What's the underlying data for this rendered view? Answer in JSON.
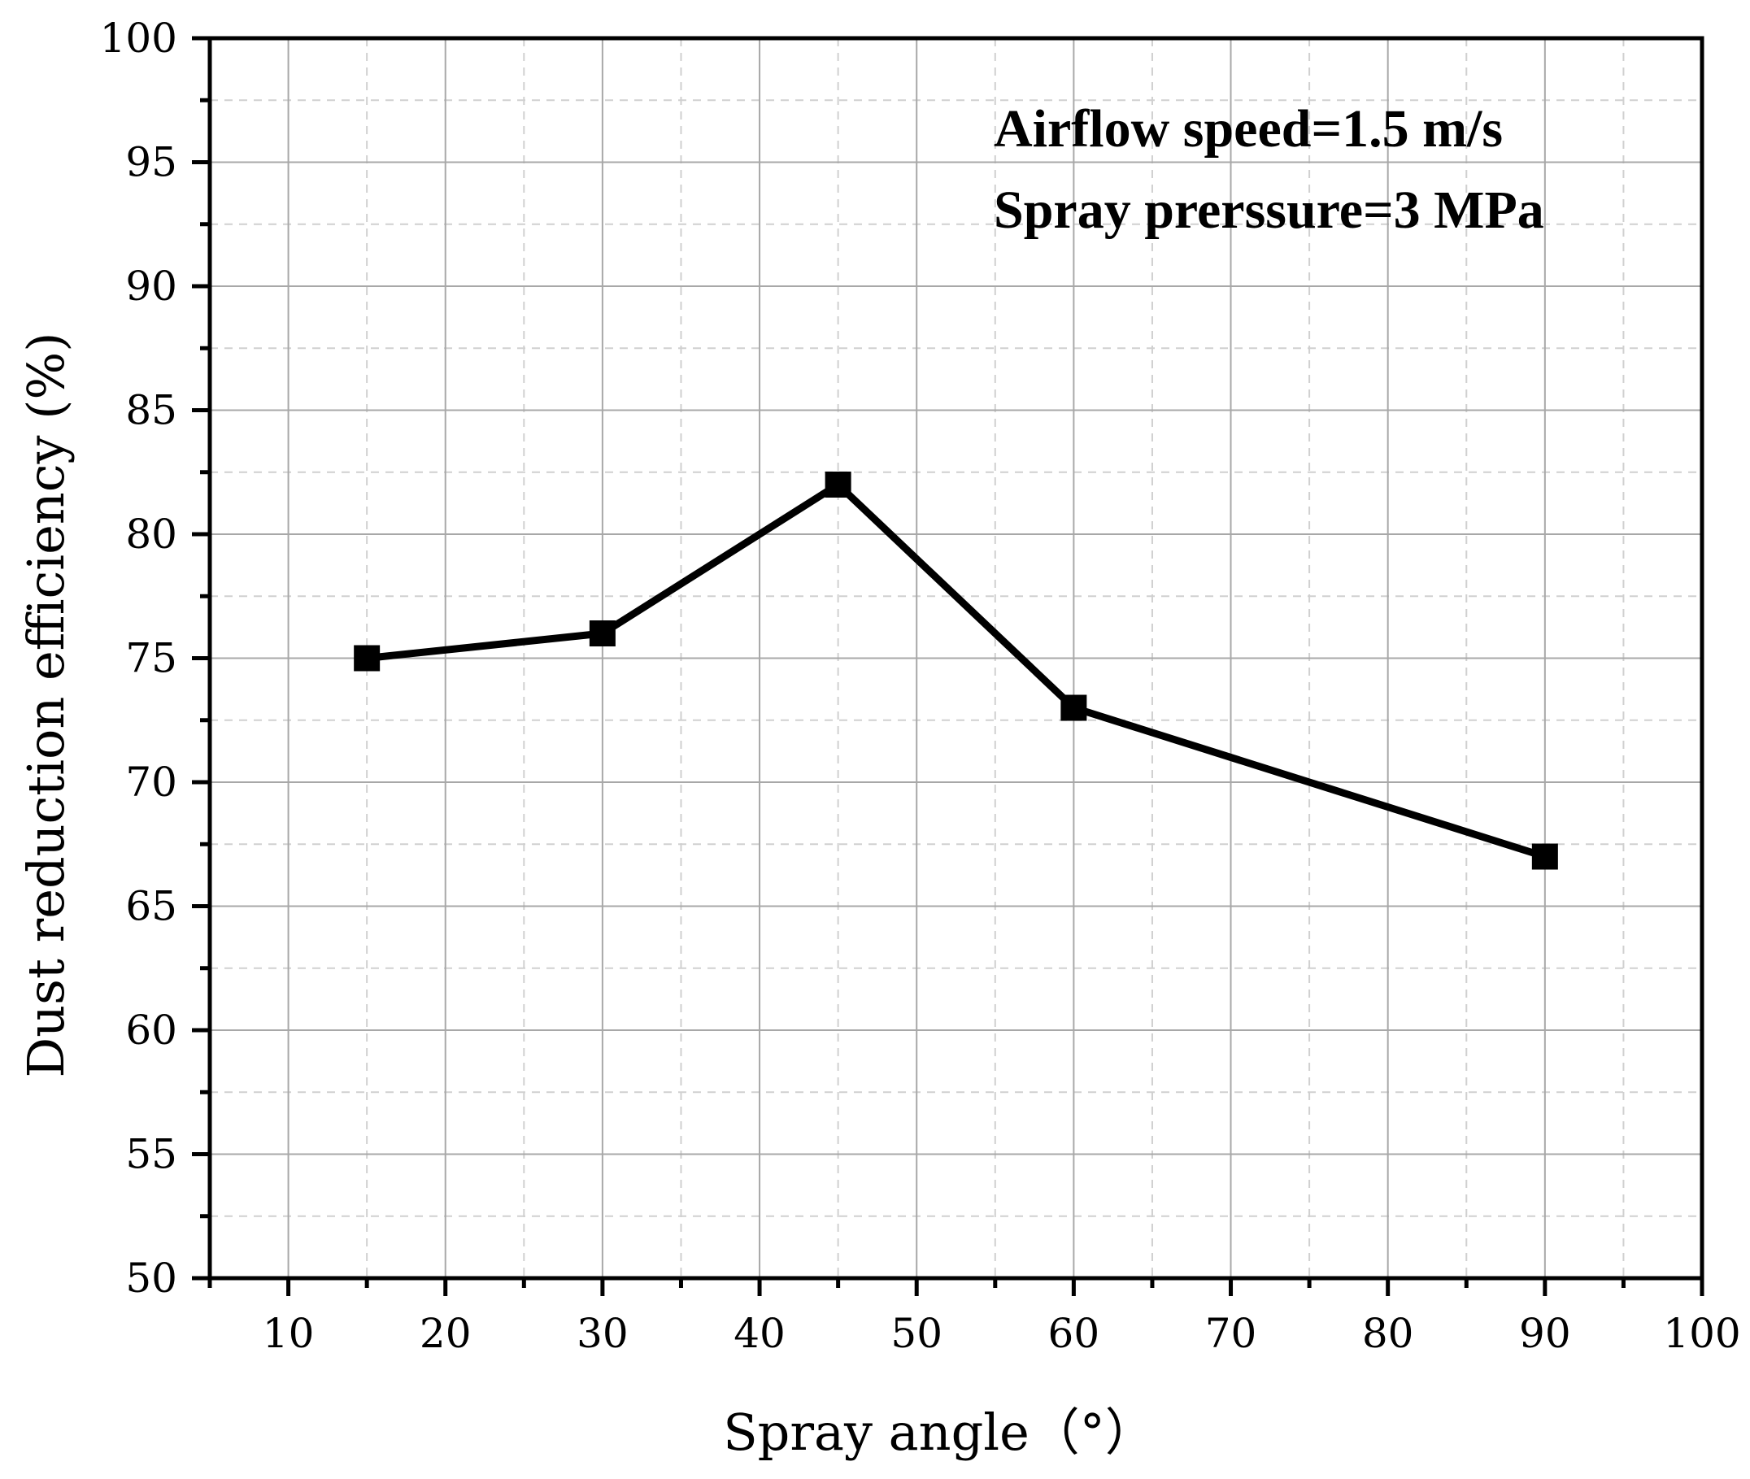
{
  "chart_data": {
    "type": "line",
    "title": "",
    "xlabel": "Spray angle（°）",
    "ylabel": "Dust reduction efficiency (%)",
    "xlim": [
      5,
      100
    ],
    "ylim": [
      50,
      100
    ],
    "xticks": [
      10,
      20,
      30,
      40,
      50,
      60,
      70,
      80,
      90,
      100
    ],
    "yticks": [
      50,
      55,
      60,
      65,
      70,
      75,
      80,
      85,
      90,
      95,
      100
    ],
    "grid": true,
    "series": [
      {
        "name": "Dust reduction efficiency",
        "marker": "square",
        "color": "#000000",
        "x": [
          15,
          30,
          45,
          60,
          90
        ],
        "y": [
          75,
          76,
          82,
          73,
          67
        ]
      }
    ],
    "annotations": [
      "Airflow speed=1.5 m/s",
      "Spray prerssure=3 MPa"
    ]
  }
}
